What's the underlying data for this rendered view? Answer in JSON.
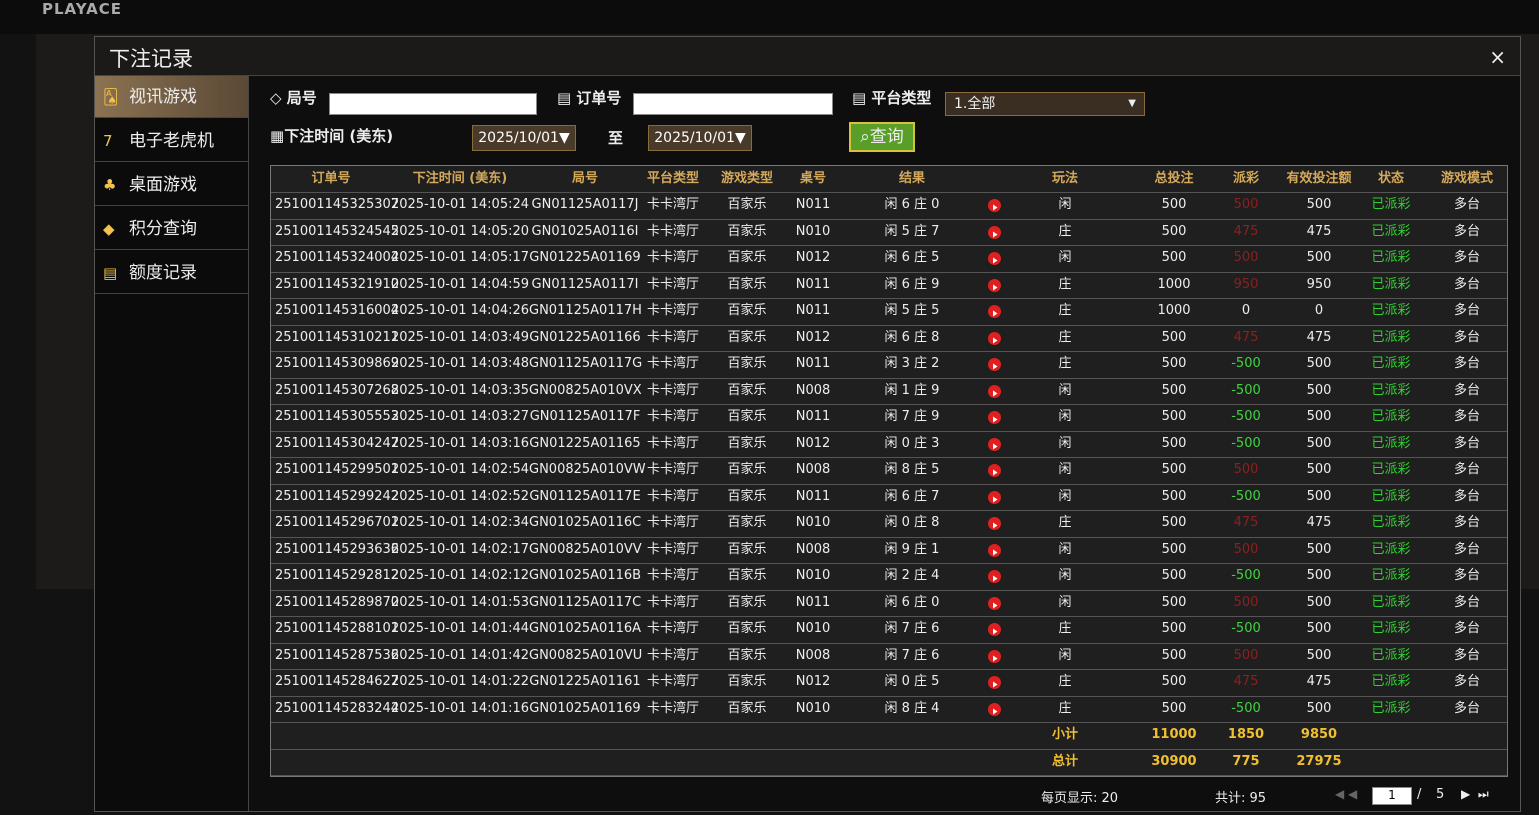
{
  "header": {
    "logo": "PLAYACE"
  },
  "dialog": {
    "title": "下注记录",
    "close": "×"
  },
  "sidebar": [
    "视讯游戏",
    "电子老虎机",
    "桌面游戏",
    "积分查询",
    "额度记录"
  ],
  "filters": {
    "round_label": "局号",
    "order_label": "订单号",
    "platform_label": "平台类型",
    "platform_value": "1.全部",
    "time_label": "下注时间 (美东)",
    "date_from": "2025/10/01▼",
    "to": "至",
    "date_to": "2025/10/01▼",
    "query": "查询"
  },
  "table": {
    "headers": [
      "订单号",
      "下注时间 (美东)",
      "局号",
      "平台类型",
      "游戏类型",
      "桌号",
      "结果",
      "玩法",
      "总投注",
      "派彩",
      "有效投注额",
      "状态",
      "游戏模式"
    ],
    "rows": [
      [
        "251001145325307",
        "2025-10-01 14:05:24",
        "GN01125A0117J",
        "卡卡湾厅",
        "百家乐",
        "N011",
        "闲 6 庄 0",
        "闲",
        500,
        500,
        500,
        "已派彩",
        "多台"
      ],
      [
        "251001145324545",
        "2025-10-01 14:05:20",
        "GN01025A0116I",
        "卡卡湾厅",
        "百家乐",
        "N010",
        "闲 5 庄 7",
        "庄",
        500,
        475,
        475,
        "已派彩",
        "多台"
      ],
      [
        "251001145324004",
        "2025-10-01 14:05:17",
        "GN01225A01169",
        "卡卡湾厅",
        "百家乐",
        "N012",
        "闲 6 庄 5",
        "闲",
        500,
        500,
        500,
        "已派彩",
        "多台"
      ],
      [
        "251001145321910",
        "2025-10-01 14:04:59",
        "GN01125A0117I",
        "卡卡湾厅",
        "百家乐",
        "N011",
        "闲 6 庄 9",
        "庄",
        1000,
        950,
        950,
        "已派彩",
        "多台"
      ],
      [
        "251001145316004",
        "2025-10-01 14:04:26",
        "GN01125A0117H",
        "卡卡湾厅",
        "百家乐",
        "N011",
        "闲 5 庄 5",
        "庄",
        1000,
        0,
        0,
        "已派彩",
        "多台"
      ],
      [
        "251001145310211",
        "2025-10-01 14:03:49",
        "GN01225A01166",
        "卡卡湾厅",
        "百家乐",
        "N012",
        "闲 6 庄 8",
        "庄",
        500,
        475,
        475,
        "已派彩",
        "多台"
      ],
      [
        "251001145309869",
        "2025-10-01 14:03:48",
        "GN01125A0117G",
        "卡卡湾厅",
        "百家乐",
        "N011",
        "闲 3 庄 2",
        "庄",
        500,
        -500,
        500,
        "已派彩",
        "多台"
      ],
      [
        "251001145307268",
        "2025-10-01 14:03:35",
        "GN00825A010VX",
        "卡卡湾厅",
        "百家乐",
        "N008",
        "闲 1 庄 9",
        "闲",
        500,
        -500,
        500,
        "已派彩",
        "多台"
      ],
      [
        "251001145305553",
        "2025-10-01 14:03:27",
        "GN01125A0117F",
        "卡卡湾厅",
        "百家乐",
        "N011",
        "闲 7 庄 9",
        "闲",
        500,
        -500,
        500,
        "已派彩",
        "多台"
      ],
      [
        "251001145304247",
        "2025-10-01 14:03:16",
        "GN01225A01165",
        "卡卡湾厅",
        "百家乐",
        "N012",
        "闲 0 庄 3",
        "闲",
        500,
        -500,
        500,
        "已派彩",
        "多台"
      ],
      [
        "251001145299501",
        "2025-10-01 14:02:54",
        "GN00825A010VW",
        "卡卡湾厅",
        "百家乐",
        "N008",
        "闲 8 庄 5",
        "闲",
        500,
        500,
        500,
        "已派彩",
        "多台"
      ],
      [
        "251001145299242",
        "2025-10-01 14:02:52",
        "GN01125A0117E",
        "卡卡湾厅",
        "百家乐",
        "N011",
        "闲 6 庄 7",
        "闲",
        500,
        -500,
        500,
        "已派彩",
        "多台"
      ],
      [
        "251001145296701",
        "2025-10-01 14:02:34",
        "GN01025A0116C",
        "卡卡湾厅",
        "百家乐",
        "N010",
        "闲 0 庄 8",
        "庄",
        500,
        475,
        475,
        "已派彩",
        "多台"
      ],
      [
        "251001145293636",
        "2025-10-01 14:02:17",
        "GN00825A010VV",
        "卡卡湾厅",
        "百家乐",
        "N008",
        "闲 9 庄 1",
        "闲",
        500,
        500,
        500,
        "已派彩",
        "多台"
      ],
      [
        "251001145292812",
        "2025-10-01 14:02:12",
        "GN01025A0116B",
        "卡卡湾厅",
        "百家乐",
        "N010",
        "闲 2 庄 4",
        "闲",
        500,
        -500,
        500,
        "已派彩",
        "多台"
      ],
      [
        "251001145289870",
        "2025-10-01 14:01:53",
        "GN01125A0117C",
        "卡卡湾厅",
        "百家乐",
        "N011",
        "闲 6 庄 0",
        "闲",
        500,
        500,
        500,
        "已派彩",
        "多台"
      ],
      [
        "251001145288101",
        "2025-10-01 14:01:44",
        "GN01025A0116A",
        "卡卡湾厅",
        "百家乐",
        "N010",
        "闲 7 庄 6",
        "庄",
        500,
        -500,
        500,
        "已派彩",
        "多台"
      ],
      [
        "251001145287536",
        "2025-10-01 14:01:42",
        "GN00825A010VU",
        "卡卡湾厅",
        "百家乐",
        "N008",
        "闲 7 庄 6",
        "闲",
        500,
        500,
        500,
        "已派彩",
        "多台"
      ],
      [
        "251001145284627",
        "2025-10-01 14:01:22",
        "GN01225A01161",
        "卡卡湾厅",
        "百家乐",
        "N012",
        "闲 0 庄 5",
        "庄",
        500,
        475,
        475,
        "已派彩",
        "多台"
      ],
      [
        "251001145283244",
        "2025-10-01 14:01:16",
        "GN01025A01169",
        "卡卡湾厅",
        "百家乐",
        "N010",
        "闲 8 庄 4",
        "庄",
        500,
        -500,
        500,
        "已派彩",
        "多台"
      ]
    ],
    "subtotal": [
      "小计",
      11000,
      1850,
      9850
    ],
    "total": [
      "总计",
      30900,
      775,
      27975
    ]
  },
  "footer": {
    "page_size": "每页显示: 20",
    "count": "共计: 95",
    "page": "1",
    "sep": "/",
    "pages": "5"
  }
}
